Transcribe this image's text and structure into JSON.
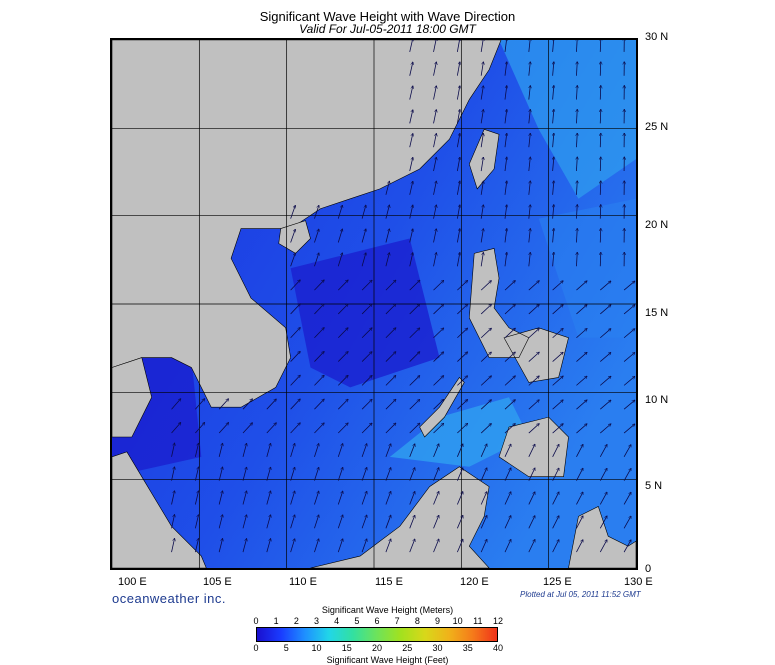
{
  "title": "Significant Wave Height with Wave Direction",
  "subtitle": "Valid For Jul-05-2011 18:00 GMT",
  "lat_labels": [
    "30 N",
    "25 N",
    "20 N",
    "15 N",
    "10 N",
    "5 N",
    "0"
  ],
  "lon_labels": [
    "100 E",
    "105 E",
    "110 E",
    "115 E",
    "120 E",
    "125 E",
    "130 E"
  ],
  "brand": "oceanweather inc.",
  "plotted": "Plotted at Jul 05, 2011 11:52 GMT",
  "colorbar": {
    "meters_title": "Significant Wave Height (Meters)",
    "feet_title": "Significant Wave Height (Feet)",
    "meters_ticks": [
      "0",
      "1",
      "2",
      "3",
      "4",
      "5",
      "6",
      "7",
      "8",
      "9",
      "10",
      "11",
      "12"
    ],
    "feet_ticks": [
      "0",
      "5",
      "10",
      "15",
      "20",
      "25",
      "30",
      "35",
      "40"
    ]
  },
  "colors": {
    "ocean_deep": "#1a1fcf",
    "ocean_mid": "#1f4fe8",
    "ocean_light": "#2fa0f0",
    "land": "#c0c0c0",
    "arrow": "#0a0a4a"
  }
}
